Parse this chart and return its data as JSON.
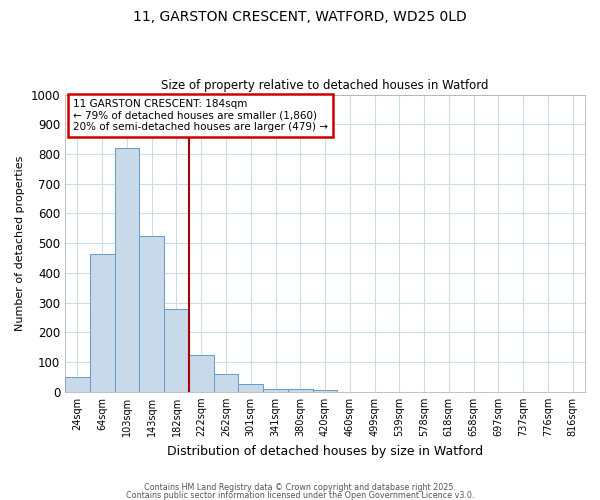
{
  "title_line1": "11, GARSTON CRESCENT, WATFORD, WD25 0LD",
  "title_line2": "Size of property relative to detached houses in Watford",
  "xlabel": "Distribution of detached houses by size in Watford",
  "ylabel": "Number of detached properties",
  "bin_labels": [
    "24sqm",
    "64sqm",
    "103sqm",
    "143sqm",
    "182sqm",
    "222sqm",
    "262sqm",
    "301sqm",
    "341sqm",
    "380sqm",
    "420sqm",
    "460sqm",
    "499sqm",
    "539sqm",
    "578sqm",
    "618sqm",
    "658sqm",
    "697sqm",
    "737sqm",
    "776sqm",
    "816sqm"
  ],
  "bar_values": [
    50,
    465,
    820,
    525,
    280,
    125,
    60,
    25,
    10,
    10,
    5,
    0,
    0,
    0,
    0,
    0,
    0,
    0,
    0,
    0,
    0
  ],
  "bar_color": "#c8daea",
  "bar_edge_color": "#6699cc",
  "property_line_x": 4.5,
  "property_line_color": "#aa0000",
  "annotation_text": "11 GARSTON CRESCENT: 184sqm\n← 79% of detached houses are smaller (1,860)\n20% of semi-detached houses are larger (479) →",
  "annotation_box_color": "#ffffff",
  "annotation_box_edge_color": "#cc0000",
  "ylim": [
    0,
    1000
  ],
  "yticks": [
    0,
    100,
    200,
    300,
    400,
    500,
    600,
    700,
    800,
    900,
    1000
  ],
  "background_color": "#ffffff",
  "grid_color": "#ccdde8",
  "footer_line1": "Contains HM Land Registry data © Crown copyright and database right 2025.",
  "footer_line2": "Contains public sector information licensed under the Open Government Licence v3.0."
}
